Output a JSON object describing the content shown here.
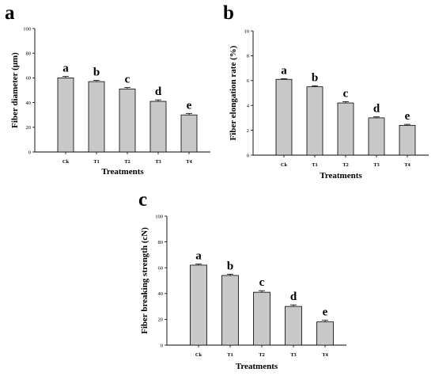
{
  "chart_data": [
    {
      "type": "bar",
      "panel": "a",
      "categories": [
        "Ck",
        "T1",
        "T2",
        "T3",
        "T4"
      ],
      "values": [
        60,
        57,
        51,
        41,
        30
      ],
      "errors": [
        1.2,
        1.0,
        1.2,
        1.2,
        1.2
      ],
      "letters": [
        "a",
        "b",
        "c",
        "d",
        "e"
      ],
      "xlabel": "Treatments",
      "ylabel": "Fiber diameter (μm)",
      "ylim": [
        0,
        100
      ],
      "yticks": [
        0,
        20,
        40,
        60,
        80,
        100
      ],
      "grid": false,
      "bar_color": "#c8c8c8"
    },
    {
      "type": "bar",
      "panel": "b",
      "categories": [
        "Ck",
        "T1",
        "T2",
        "T3",
        "T4"
      ],
      "values": [
        6.1,
        5.5,
        4.2,
        3.0,
        2.4
      ],
      "errors": [
        0.05,
        0.08,
        0.1,
        0.08,
        0.08
      ],
      "letters": [
        "a",
        "b",
        "c",
        "d",
        "e"
      ],
      "xlabel": "Treatments",
      "ylabel": "Fiber elongation rate (%)",
      "ylim": [
        0,
        10
      ],
      "yticks": [
        0,
        2,
        4,
        6,
        8,
        10
      ],
      "grid": false,
      "bar_color": "#c8c8c8"
    },
    {
      "type": "bar",
      "panel": "c",
      "categories": [
        "Ck",
        "T1",
        "T2",
        "T3",
        "T4"
      ],
      "values": [
        62,
        54,
        41,
        30,
        18
      ],
      "errors": [
        0.8,
        1.0,
        1.2,
        1.2,
        1.2
      ],
      "letters": [
        "a",
        "b",
        "c",
        "d",
        "e"
      ],
      "xlabel": "Treatments",
      "ylabel": "Fiber breaking strength (cN)",
      "ylim": [
        0,
        100
      ],
      "yticks": [
        0,
        20,
        40,
        60,
        80,
        100
      ],
      "grid": false,
      "bar_color": "#c8c8c8"
    }
  ]
}
